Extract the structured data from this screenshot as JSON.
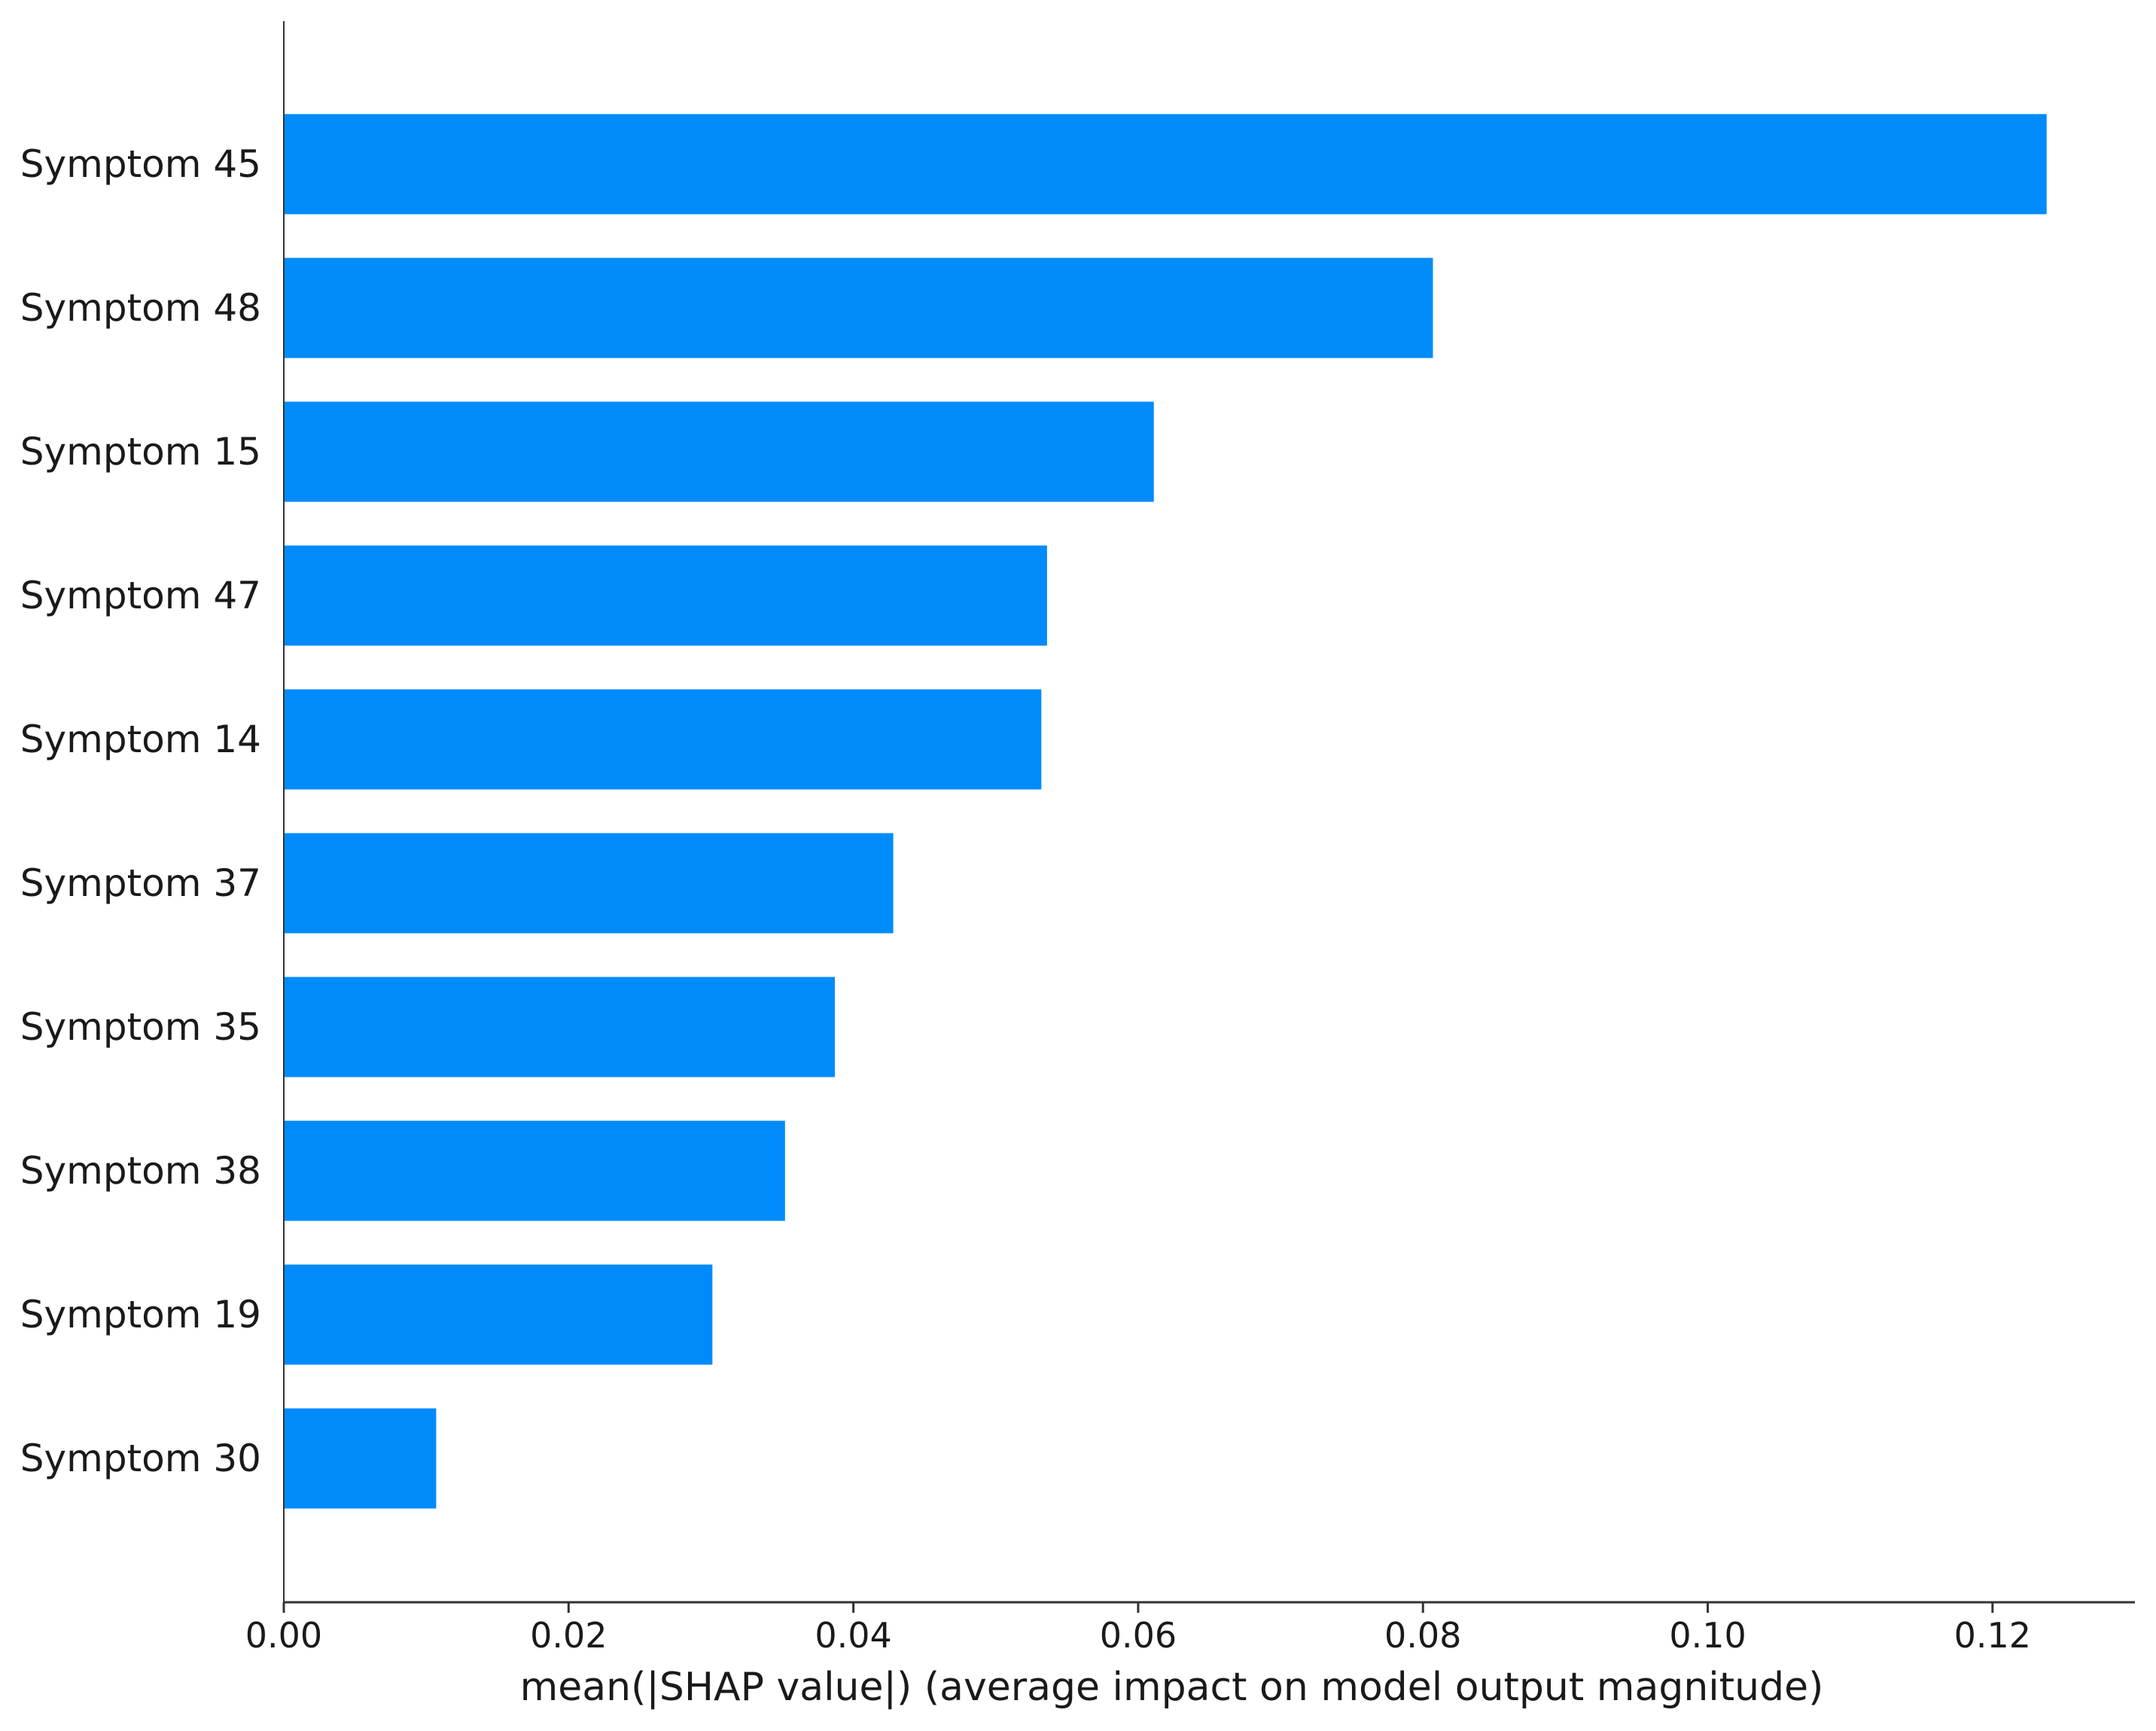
{
  "chart_data": {
    "type": "bar",
    "orientation": "horizontal",
    "categories": [
      "Symptom 45",
      "Symptom 48",
      "Symptom 15",
      "Symptom 47",
      "Symptom 14",
      "Symptom 37",
      "Symptom 35",
      "Symptom 38",
      "Symptom 19",
      "Symptom 30"
    ],
    "values": [
      0.1238,
      0.0807,
      0.0611,
      0.0536,
      0.0532,
      0.0428,
      0.0387,
      0.0352,
      0.0301,
      0.0107
    ],
    "xlabel": "mean(|SHAP value|) (average impact on model output magnitude)",
    "ylabel": "",
    "title": "",
    "xlim": [
      0,
      0.13
    ],
    "xticks": [
      0,
      0.02,
      0.04,
      0.06,
      0.08,
      0.1,
      0.12
    ],
    "xtick_labels": [
      "0.00",
      "0.02",
      "0.04",
      "0.06",
      "0.08",
      "0.10",
      "0.12"
    ],
    "grid": false,
    "legend": "none",
    "colors": {
      "bar": "#008bfb",
      "axis": "#333333",
      "text": "#1a1a1a"
    }
  }
}
